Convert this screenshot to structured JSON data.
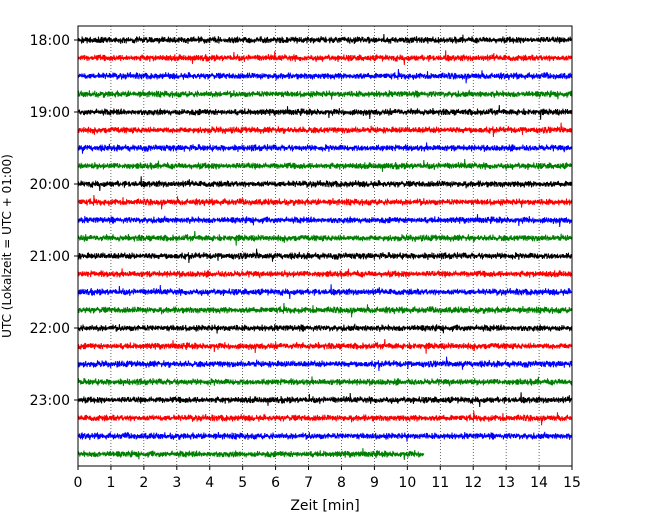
{
  "chart_data": {
    "type": "line",
    "title": "",
    "xlabel": "Zeit  [min]",
    "ylabel": "UTC (Lokalzeit = UTC + 01:00)",
    "xlim": [
      0,
      15
    ],
    "xticks": [
      0,
      1,
      2,
      3,
      4,
      5,
      6,
      7,
      8,
      9,
      10,
      11,
      12,
      13,
      14,
      15
    ],
    "xtick_labels": [
      "0",
      "1",
      "2",
      "3",
      "4",
      "5",
      "6",
      "7",
      "8",
      "9",
      "10",
      "11",
      "12",
      "13",
      "14",
      "15"
    ],
    "yticks": [
      "18:00",
      "19:00",
      "20:00",
      "21:00",
      "22:00",
      "23:00"
    ],
    "ytick_labels": [
      "18:00",
      "19:00",
      "20:00",
      "21:00",
      "22:00",
      "23:00"
    ],
    "trace_interval_minutes": 15,
    "traces_per_hour": 4,
    "grid": "x-dotted",
    "legend": "none",
    "colors": [
      "#000000",
      "#ff0000",
      "#0000ff",
      "#008000"
    ],
    "series": [
      {
        "start": "18:00",
        "color": "#000000",
        "duration_min": 15
      },
      {
        "start": "18:15",
        "color": "#ff0000",
        "duration_min": 15
      },
      {
        "start": "18:30",
        "color": "#0000ff",
        "duration_min": 15
      },
      {
        "start": "18:45",
        "color": "#008000",
        "duration_min": 15
      },
      {
        "start": "19:00",
        "color": "#000000",
        "duration_min": 15
      },
      {
        "start": "19:15",
        "color": "#ff0000",
        "duration_min": 15
      },
      {
        "start": "19:30",
        "color": "#0000ff",
        "duration_min": 15
      },
      {
        "start": "19:45",
        "color": "#008000",
        "duration_min": 15
      },
      {
        "start": "20:00",
        "color": "#000000",
        "duration_min": 15
      },
      {
        "start": "20:15",
        "color": "#ff0000",
        "duration_min": 15
      },
      {
        "start": "20:30",
        "color": "#0000ff",
        "duration_min": 15
      },
      {
        "start": "20:45",
        "color": "#008000",
        "duration_min": 15
      },
      {
        "start": "21:00",
        "color": "#000000",
        "duration_min": 15
      },
      {
        "start": "21:15",
        "color": "#ff0000",
        "duration_min": 15
      },
      {
        "start": "21:30",
        "color": "#0000ff",
        "duration_min": 15
      },
      {
        "start": "21:45",
        "color": "#008000",
        "duration_min": 15
      },
      {
        "start": "22:00",
        "color": "#000000",
        "duration_min": 15
      },
      {
        "start": "22:15",
        "color": "#ff0000",
        "duration_min": 15
      },
      {
        "start": "22:30",
        "color": "#0000ff",
        "duration_min": 15
      },
      {
        "start": "22:45",
        "color": "#008000",
        "duration_min": 15
      },
      {
        "start": "23:00",
        "color": "#000000",
        "duration_min": 15
      },
      {
        "start": "23:15",
        "color": "#ff0000",
        "duration_min": 15
      },
      {
        "start": "23:30",
        "color": "#0000ff",
        "duration_min": 15
      },
      {
        "start": "23:45",
        "color": "#008000",
        "duration_min": 10.5
      }
    ]
  }
}
